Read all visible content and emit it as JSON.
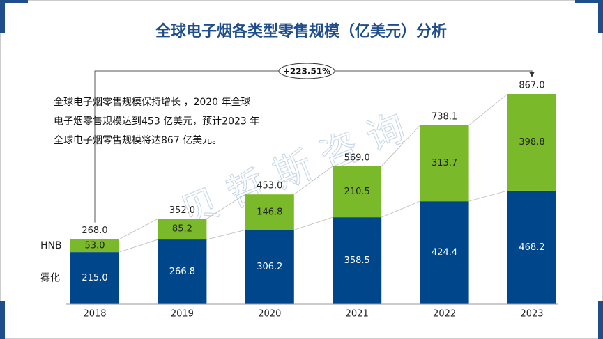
{
  "chart_data": {
    "type": "stacked-bar",
    "title": "全球电子烟各类型零售规模（亿美元）分析",
    "categories": [
      "2018",
      "2019",
      "2020",
      "2021",
      "2022",
      "2023"
    ],
    "series": [
      {
        "name": "雾化",
        "color": "#00468b",
        "values": [
          215.0,
          266.8,
          306.2,
          358.5,
          424.4,
          468.2
        ],
        "value_labels": [
          "215.0",
          "266.8",
          "306.2",
          "358.5",
          "424.4",
          "468.2"
        ]
      },
      {
        "name": "HNB",
        "color": "#7ab929",
        "values": [
          53.0,
          85.2,
          146.8,
          210.5,
          313.7,
          398.8
        ],
        "value_labels": [
          "53.0",
          "85.2",
          "146.8",
          "210.5",
          "313.7",
          "398.8"
        ]
      }
    ],
    "totals": {
      "values": [
        268.0,
        352.0,
        453.0,
        569.0,
        738.1,
        867.0
      ],
      "value_labels": [
        "268.0",
        "352.0",
        "453.0",
        "569.0",
        "738.1",
        "867.0"
      ]
    },
    "growth_annotation": "+223.51%",
    "note_lines": [
      "全球电子烟零售规模保持增长 ，2020 年全球",
      "电子烟零售规模达到453 亿美元，预计2023 年",
      "全球电子烟零售规模将达867 亿美元。"
    ],
    "watermark": "贝哲斯咨询"
  }
}
